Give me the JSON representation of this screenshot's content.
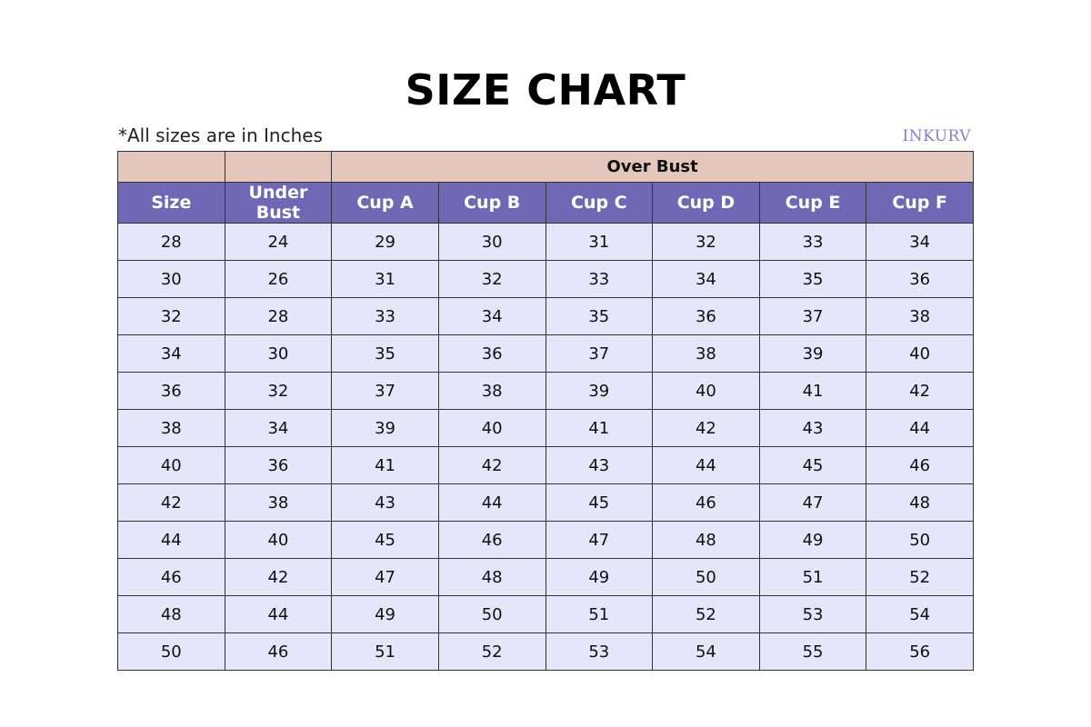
{
  "title": "SIZE CHART",
  "note": "*All sizes are in Inches",
  "logo": "INKURV",
  "colors": {
    "group_header": "#e3c6bc",
    "column_header": "#7068b4",
    "row": "#e6e6fa"
  },
  "table": {
    "group_header": "Over Bust",
    "columns": [
      "Size",
      "Under Bust",
      "Cup A",
      "Cup B",
      "Cup C",
      "Cup D",
      "Cup E",
      "Cup F"
    ],
    "rows": [
      [
        "28",
        "24",
        "29",
        "30",
        "31",
        "32",
        "33",
        "34"
      ],
      [
        "30",
        "26",
        "31",
        "32",
        "33",
        "34",
        "35",
        "36"
      ],
      [
        "32",
        "28",
        "33",
        "34",
        "35",
        "36",
        "37",
        "38"
      ],
      [
        "34",
        "30",
        "35",
        "36",
        "37",
        "38",
        "39",
        "40"
      ],
      [
        "36",
        "32",
        "37",
        "38",
        "39",
        "40",
        "41",
        "42"
      ],
      [
        "38",
        "34",
        "39",
        "40",
        "41",
        "42",
        "43",
        "44"
      ],
      [
        "40",
        "36",
        "41",
        "42",
        "43",
        "44",
        "45",
        "46"
      ],
      [
        "42",
        "38",
        "43",
        "44",
        "45",
        "46",
        "47",
        "48"
      ],
      [
        "44",
        "40",
        "45",
        "46",
        "47",
        "48",
        "49",
        "50"
      ],
      [
        "46",
        "42",
        "47",
        "48",
        "49",
        "50",
        "51",
        "52"
      ],
      [
        "48",
        "44",
        "49",
        "50",
        "51",
        "52",
        "53",
        "54"
      ],
      [
        "50",
        "46",
        "51",
        "52",
        "53",
        "54",
        "55",
        "56"
      ]
    ]
  }
}
